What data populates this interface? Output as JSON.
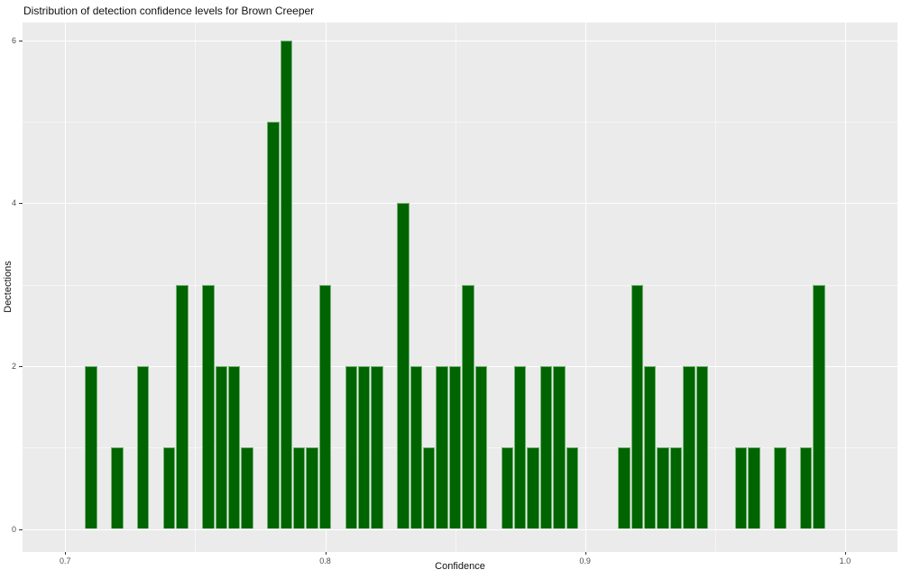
{
  "chart_data": {
    "type": "bar",
    "subtype": "histogram",
    "title": "Distribution of detection confidence levels for Brown Creeper",
    "xlabel": "Confidence",
    "ylabel": "Dectections",
    "x_ticks": [
      0.7,
      0.8,
      0.9,
      1.0
    ],
    "x_tick_labels": [
      "0.7",
      "0.8",
      "0.9",
      "1.0"
    ],
    "x_minor_ticks": [
      0.75,
      0.85,
      0.95
    ],
    "y_ticks": [
      0,
      2,
      4,
      6
    ],
    "y_tick_labels": [
      "0",
      "2",
      "4",
      "6"
    ],
    "y_minor_ticks": [
      1,
      3,
      5
    ],
    "xlim": [
      0.684,
      1.02
    ],
    "ylim": [
      -0.28,
      6.22
    ],
    "binwidth": 0.005,
    "grid": "on",
    "legend": "none",
    "panel_bg": "#EBEBEB",
    "grid_major_color": "#FFFFFF",
    "bar_fill": "#006400",
    "bar_edge": "#76B376",
    "bins": {
      "centers": [
        0.71,
        0.72,
        0.73,
        0.74,
        0.745,
        0.755,
        0.76,
        0.765,
        0.77,
        0.78,
        0.785,
        0.79,
        0.795,
        0.8,
        0.81,
        0.815,
        0.82,
        0.83,
        0.835,
        0.84,
        0.845,
        0.85,
        0.855,
        0.86,
        0.87,
        0.875,
        0.88,
        0.885,
        0.89,
        0.895,
        0.915,
        0.92,
        0.925,
        0.93,
        0.935,
        0.94,
        0.945,
        0.96,
        0.965,
        0.975,
        0.985,
        0.99
      ],
      "counts": [
        2,
        1,
        2,
        1,
        3,
        3,
        2,
        2,
        1,
        5,
        6,
        1,
        1,
        3,
        2,
        2,
        2,
        4,
        2,
        1,
        2,
        2,
        3,
        2,
        1,
        2,
        1,
        2,
        2,
        1,
        1,
        3,
        2,
        1,
        1,
        2,
        2,
        1,
        1,
        1,
        1,
        3
      ]
    },
    "total_detections": 83
  }
}
